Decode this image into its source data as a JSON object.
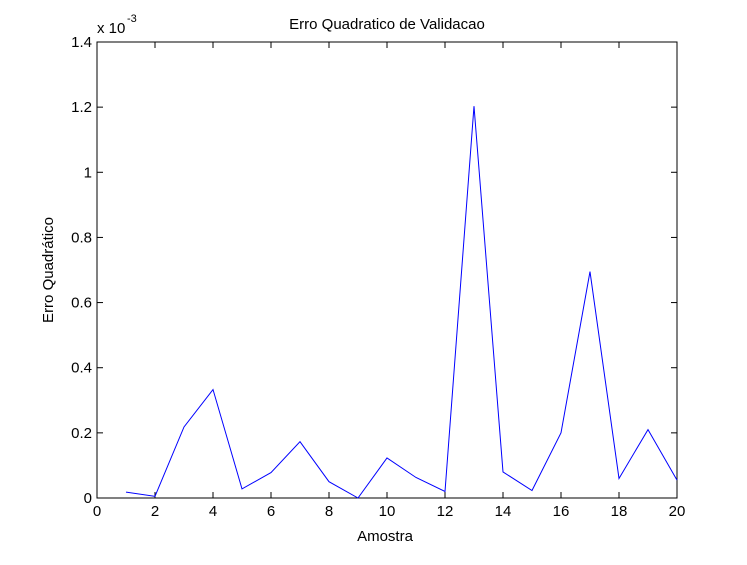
{
  "chart_data": {
    "type": "line",
    "title": "Erro Quadratico de Validacao",
    "xlabel": "Amostra",
    "ylabel": "Erro Quadrático",
    "exponent_base": "x 10",
    "exponent_power": "-3",
    "xlim": [
      0,
      20
    ],
    "ylim": [
      0,
      1.4
    ],
    "xticks": [
      0,
      2,
      4,
      6,
      8,
      10,
      12,
      14,
      16,
      18,
      20
    ],
    "yticks": [
      0,
      0.2,
      0.4,
      0.6,
      0.8,
      1,
      1.2,
      1.4
    ],
    "ytick_labels": [
      "0",
      "0.2",
      "0.4",
      "0.6",
      "0.8",
      "1",
      "1.2",
      "1.4"
    ],
    "grid": false,
    "series": [
      {
        "color": "#0000ff",
        "x": [
          1,
          2,
          3,
          4,
          5,
          6,
          7,
          8,
          9,
          10,
          11,
          12,
          13,
          14,
          15,
          16,
          17,
          18,
          19,
          20
        ],
        "values": [
          0.018,
          0.005,
          0.218,
          0.333,
          0.028,
          0.078,
          0.173,
          0.05,
          0.0,
          0.123,
          0.063,
          0.02,
          1.203,
          0.08,
          0.023,
          0.2,
          0.695,
          0.06,
          0.21,
          0.055
        ]
      }
    ]
  }
}
